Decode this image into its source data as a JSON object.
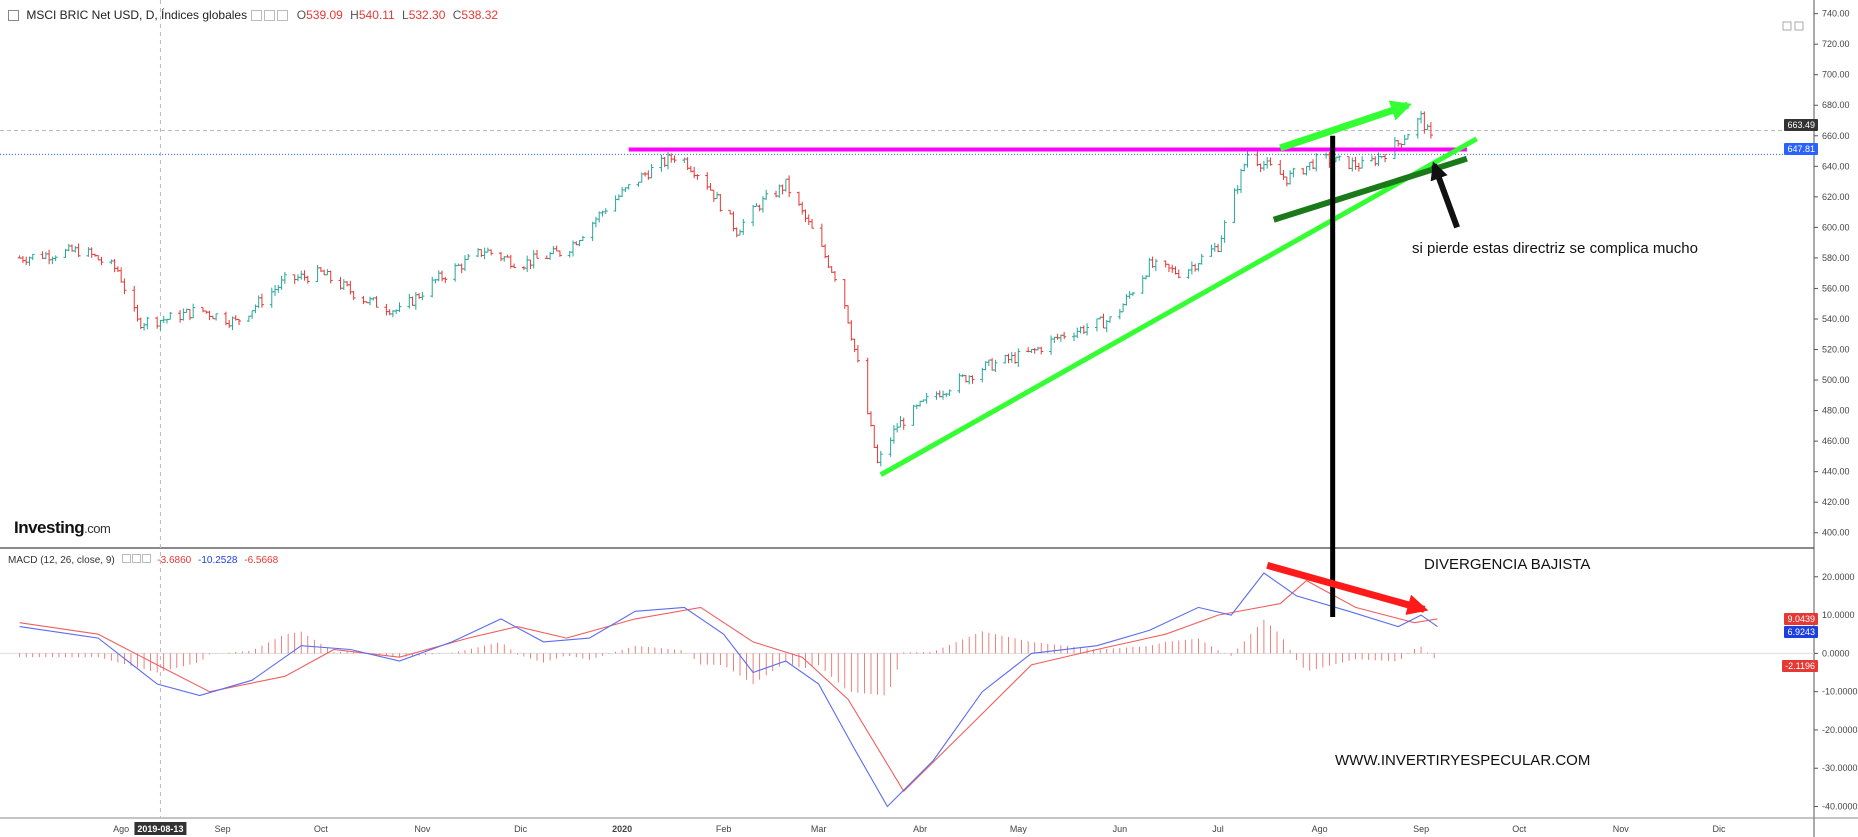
{
  "header": {
    "title": "MSCI BRIC Net USD, D, Índices globales",
    "open_label": "O",
    "open": "539.09",
    "high_label": "H",
    "high": "540.11",
    "low_label": "L",
    "low": "532.30",
    "close_label": "C",
    "close": "538.32"
  },
  "macd_header": {
    "title": "MACD (12, 26, close, 9)",
    "v1": "-3.6860",
    "v2": "-10.2528",
    "v3": "-6.5668"
  },
  "logo": {
    "brand": "Investing",
    "suffix": ".com"
  },
  "annotations": {
    "directriz": "si pierde estas directriz se complica mucho",
    "divergencia": "DIVERGENCIA BAJISTA",
    "website": "WWW.INVERTIRYESPECULAR.COM"
  },
  "colors": {
    "up": "#26a69a",
    "down": "#e53935",
    "magenta": "#ff00ff",
    "bright_green": "#33ff33",
    "dark_green": "#1a7a1a",
    "macd_line": "#5a6cf0",
    "signal_line": "#f06060"
  },
  "chart_data": [
    {
      "type": "candlestick",
      "title": "MSCI BRIC Net USD, D, Índices globales",
      "ylim": [
        390,
        745
      ],
      "y_ticks": [
        "740.00",
        "720.00",
        "700.00",
        "680.00",
        "660.00",
        "640.00",
        "620.00",
        "600.00",
        "580.00",
        "560.00",
        "540.00",
        "520.00",
        "500.00",
        "480.00",
        "460.00",
        "440.00",
        "420.00",
        "400.00"
      ],
      "x_ticks": [
        "Ago",
        "2019-08-13",
        "Sep",
        "Oct",
        "Nov",
        "Dic",
        "2020",
        "Feb",
        "Mar",
        "Abr",
        "May",
        "Jun",
        "Jul",
        "Ago",
        "Sep",
        "Oct",
        "Nov",
        "Dic"
      ],
      "price_labels": {
        "last": "663.49",
        "current": "647.81"
      },
      "close_path": [
        {
          "d": "2019-07-01",
          "v": 580
        },
        {
          "d": "2019-07-20",
          "v": 585
        },
        {
          "d": "2019-07-31",
          "v": 572
        },
        {
          "d": "2019-08-06",
          "v": 538
        },
        {
          "d": "2019-08-15",
          "v": 540
        },
        {
          "d": "2019-08-25",
          "v": 546
        },
        {
          "d": "2019-09-05",
          "v": 538
        },
        {
          "d": "2019-09-20",
          "v": 565
        },
        {
          "d": "2019-10-01",
          "v": 570
        },
        {
          "d": "2019-10-15",
          "v": 552
        },
        {
          "d": "2019-10-25",
          "v": 545
        },
        {
          "d": "2019-11-05",
          "v": 565
        },
        {
          "d": "2019-11-20",
          "v": 585
        },
        {
          "d": "2019-12-01",
          "v": 576
        },
        {
          "d": "2019-12-15",
          "v": 585
        },
        {
          "d": "2019-12-28",
          "v": 615
        },
        {
          "d": "2020-01-08",
          "v": 635
        },
        {
          "d": "2020-01-18",
          "v": 648
        },
        {
          "d": "2020-01-26",
          "v": 632
        },
        {
          "d": "2020-02-05",
          "v": 598
        },
        {
          "d": "2020-02-12",
          "v": 615
        },
        {
          "d": "2020-02-20",
          "v": 628
        },
        {
          "d": "2020-02-28",
          "v": 598
        },
        {
          "d": "2020-03-08",
          "v": 560
        },
        {
          "d": "2020-03-14",
          "v": 500
        },
        {
          "d": "2020-03-19",
          "v": 445
        },
        {
          "d": "2020-03-25",
          "v": 470
        },
        {
          "d": "2020-04-05",
          "v": 490
        },
        {
          "d": "2020-04-20",
          "v": 508
        },
        {
          "d": "2020-05-05",
          "v": 518
        },
        {
          "d": "2020-05-15",
          "v": 530
        },
        {
          "d": "2020-05-30",
          "v": 540
        },
        {
          "d": "2020-06-10",
          "v": 575
        },
        {
          "d": "2020-06-20",
          "v": 570
        },
        {
          "d": "2020-07-01",
          "v": 588
        },
        {
          "d": "2020-07-10",
          "v": 648
        },
        {
          "d": "2020-07-22",
          "v": 632
        },
        {
          "d": "2020-08-01",
          "v": 645
        },
        {
          "d": "2020-08-15",
          "v": 640
        },
        {
          "d": "2020-08-25",
          "v": 655
        },
        {
          "d": "2020-09-01",
          "v": 672
        },
        {
          "d": "2020-09-06",
          "v": 648
        }
      ],
      "x_range": [
        "2019-06-25",
        "2020-12-30"
      ]
    },
    {
      "type": "line",
      "title": "MACD (12, 26, close, 9)",
      "ylim": [
        -43,
        27
      ],
      "y_ticks": [
        "20.0000",
        "10.0000",
        "0.0000",
        "-10.0000",
        "-20.0000",
        "-30.0000",
        "-40.0000"
      ],
      "value_labels": {
        "signal": "9.0439",
        "macd": "6.9243",
        "hist": "-2.1196"
      },
      "series": [
        {
          "name": "MACD",
          "points": [
            {
              "d": "2019-07-01",
              "v": 7
            },
            {
              "d": "2019-07-25",
              "v": 4
            },
            {
              "d": "2019-08-12",
              "v": -8
            },
            {
              "d": "2019-08-25",
              "v": -11
            },
            {
              "d": "2019-09-10",
              "v": -7
            },
            {
              "d": "2019-09-25",
              "v": 2
            },
            {
              "d": "2019-10-10",
              "v": 1
            },
            {
              "d": "2019-10-25",
              "v": -2
            },
            {
              "d": "2019-11-10",
              "v": 3
            },
            {
              "d": "2019-11-25",
              "v": 9
            },
            {
              "d": "2019-12-08",
              "v": 3
            },
            {
              "d": "2019-12-22",
              "v": 4
            },
            {
              "d": "2020-01-05",
              "v": 11
            },
            {
              "d": "2020-01-20",
              "v": 12
            },
            {
              "d": "2020-02-01",
              "v": 5
            },
            {
              "d": "2020-02-10",
              "v": -5
            },
            {
              "d": "2020-02-20",
              "v": -2
            },
            {
              "d": "2020-03-01",
              "v": -8
            },
            {
              "d": "2020-03-12",
              "v": -25
            },
            {
              "d": "2020-03-22",
              "v": -40
            },
            {
              "d": "2020-04-05",
              "v": -28
            },
            {
              "d": "2020-04-20",
              "v": -10
            },
            {
              "d": "2020-05-05",
              "v": 0
            },
            {
              "d": "2020-05-25",
              "v": 2
            },
            {
              "d": "2020-06-10",
              "v": 6
            },
            {
              "d": "2020-06-25",
              "v": 12
            },
            {
              "d": "2020-07-05",
              "v": 10
            },
            {
              "d": "2020-07-15",
              "v": 21
            },
            {
              "d": "2020-07-25",
              "v": 15
            },
            {
              "d": "2020-08-10",
              "v": 11
            },
            {
              "d": "2020-08-25",
              "v": 7
            },
            {
              "d": "2020-09-01",
              "v": 10
            },
            {
              "d": "2020-09-06",
              "v": 7
            }
          ]
        },
        {
          "name": "Signal",
          "points": [
            {
              "d": "2019-07-01",
              "v": 8
            },
            {
              "d": "2019-07-25",
              "v": 5
            },
            {
              "d": "2019-08-12",
              "v": -3
            },
            {
              "d": "2019-08-28",
              "v": -10
            },
            {
              "d": "2019-09-20",
              "v": -6
            },
            {
              "d": "2019-10-05",
              "v": 1
            },
            {
              "d": "2019-10-25",
              "v": -1
            },
            {
              "d": "2019-11-15",
              "v": 4
            },
            {
              "d": "2019-11-30",
              "v": 7
            },
            {
              "d": "2019-12-15",
              "v": 4
            },
            {
              "d": "2020-01-05",
              "v": 9
            },
            {
              "d": "2020-01-25",
              "v": 12
            },
            {
              "d": "2020-02-10",
              "v": 3
            },
            {
              "d": "2020-02-25",
              "v": -1
            },
            {
              "d": "2020-03-10",
              "v": -12
            },
            {
              "d": "2020-03-27",
              "v": -36
            },
            {
              "d": "2020-04-15",
              "v": -20
            },
            {
              "d": "2020-05-05",
              "v": -3
            },
            {
              "d": "2020-05-25",
              "v": 1
            },
            {
              "d": "2020-06-15",
              "v": 5
            },
            {
              "d": "2020-07-01",
              "v": 10
            },
            {
              "d": "2020-07-20",
              "v": 13
            },
            {
              "d": "2020-07-28",
              "v": 19
            },
            {
              "d": "2020-08-12",
              "v": 12
            },
            {
              "d": "2020-08-30",
              "v": 8
            },
            {
              "d": "2020-09-06",
              "v": 9
            }
          ]
        }
      ]
    }
  ]
}
